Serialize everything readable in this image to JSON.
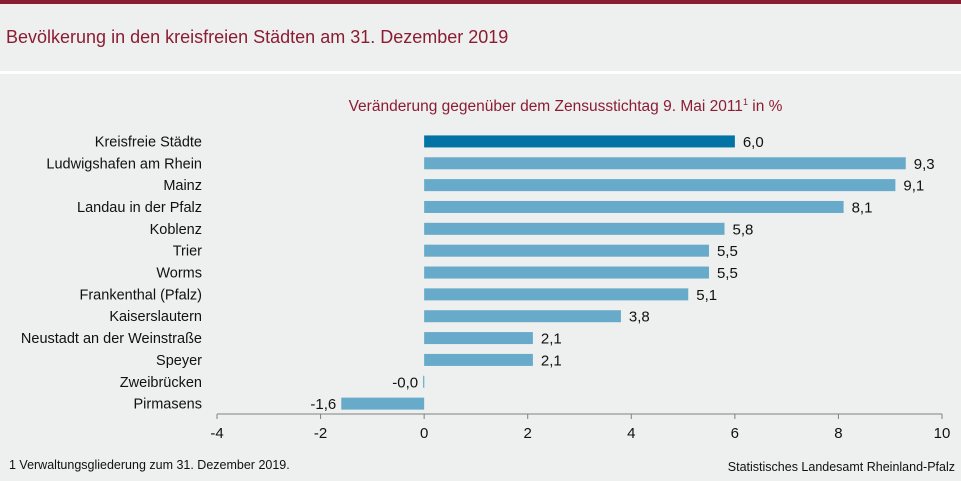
{
  "header": {
    "title": "Bevölkerung in den kreisfreien Städten am 31. Dezember 2019"
  },
  "footer": {
    "footnote": "1 Verwaltungsgliederung  zum 31. Dezember 2019.",
    "source": "Statistisches Landesamt Rheinland-Pfalz"
  },
  "colors": {
    "accent": "#8b1d33",
    "bar_highlight": "#0173a4",
    "bar_default": "#67aaca",
    "axis": "#808080"
  },
  "chart_data": {
    "type": "bar",
    "orientation": "horizontal",
    "title": "Veränderung gegenüber dem Zensusstichtag 9. Mai 2011",
    "title_superscript": "1",
    "title_suffix": " in %",
    "xlabel": "",
    "ylabel": "",
    "xlim": [
      -4,
      10
    ],
    "xticks": [
      -4,
      -2,
      0,
      2,
      4,
      6,
      8,
      10
    ],
    "xtick_labels": [
      "-4",
      "-2",
      "0",
      "2",
      "4",
      "6",
      "8",
      "10"
    ],
    "grid": false,
    "categories": [
      "Kreisfreie Städte",
      "Ludwigshafen am Rhein",
      "Mainz",
      "Landau in der Pfalz",
      "Koblenz",
      "Trier",
      "Worms",
      "Frankenthal (Pfalz)",
      "Kaiserslautern",
      "Neustadt an der Weinstraße",
      "Speyer",
      "Zweibrücken",
      "Pirmasens"
    ],
    "values": [
      6.0,
      9.3,
      9.1,
      8.1,
      5.8,
      5.5,
      5.5,
      5.1,
      3.8,
      2.1,
      2.1,
      -0.02,
      -1.6
    ],
    "value_labels": [
      "6,0",
      "9,3",
      "9,1",
      "8,1",
      "5,8",
      "5,5",
      "5,5",
      "5,1",
      "3,8",
      "2,1",
      "2,1",
      "-0,0",
      "-1,6"
    ],
    "highlight_index": 0
  }
}
